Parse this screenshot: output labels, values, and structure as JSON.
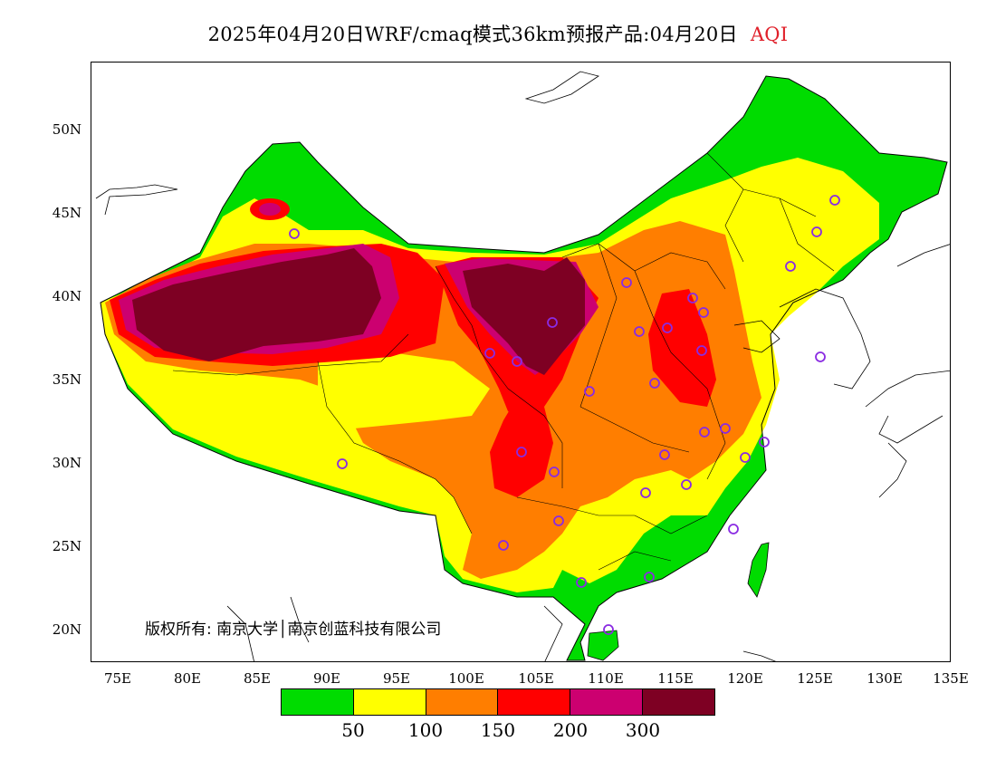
{
  "title": {
    "main": "2025年04月20日WRF/cmaq模式36km预报产品:04月20日",
    "variable": "AQI"
  },
  "copyright": "版权所有: 南京大学│南京创蓝科技有限公司",
  "axes": {
    "lat_labels": [
      "50N",
      "45N",
      "40N",
      "35N",
      "30N",
      "25N",
      "20N"
    ],
    "lon_labels": [
      "75E",
      "80E",
      "85E",
      "90E",
      "95E",
      "100E",
      "105E",
      "110E",
      "115E",
      "120E",
      "125E",
      "130E",
      "135E"
    ]
  },
  "legend": {
    "colors": [
      "#00dc00",
      "#ffff00",
      "#ff7e00",
      "#ff0000",
      "#cc0070",
      "#7e0023"
    ],
    "labels": [
      "50",
      "100",
      "150",
      "200",
      "300"
    ]
  },
  "colors": {
    "green": "#00dc00",
    "yellow": "#ffff00",
    "orange": "#ff7e00",
    "red": "#ff0000",
    "purple": "#cc0070",
    "maroon": "#7e0023",
    "station": "#8a2be2"
  }
}
